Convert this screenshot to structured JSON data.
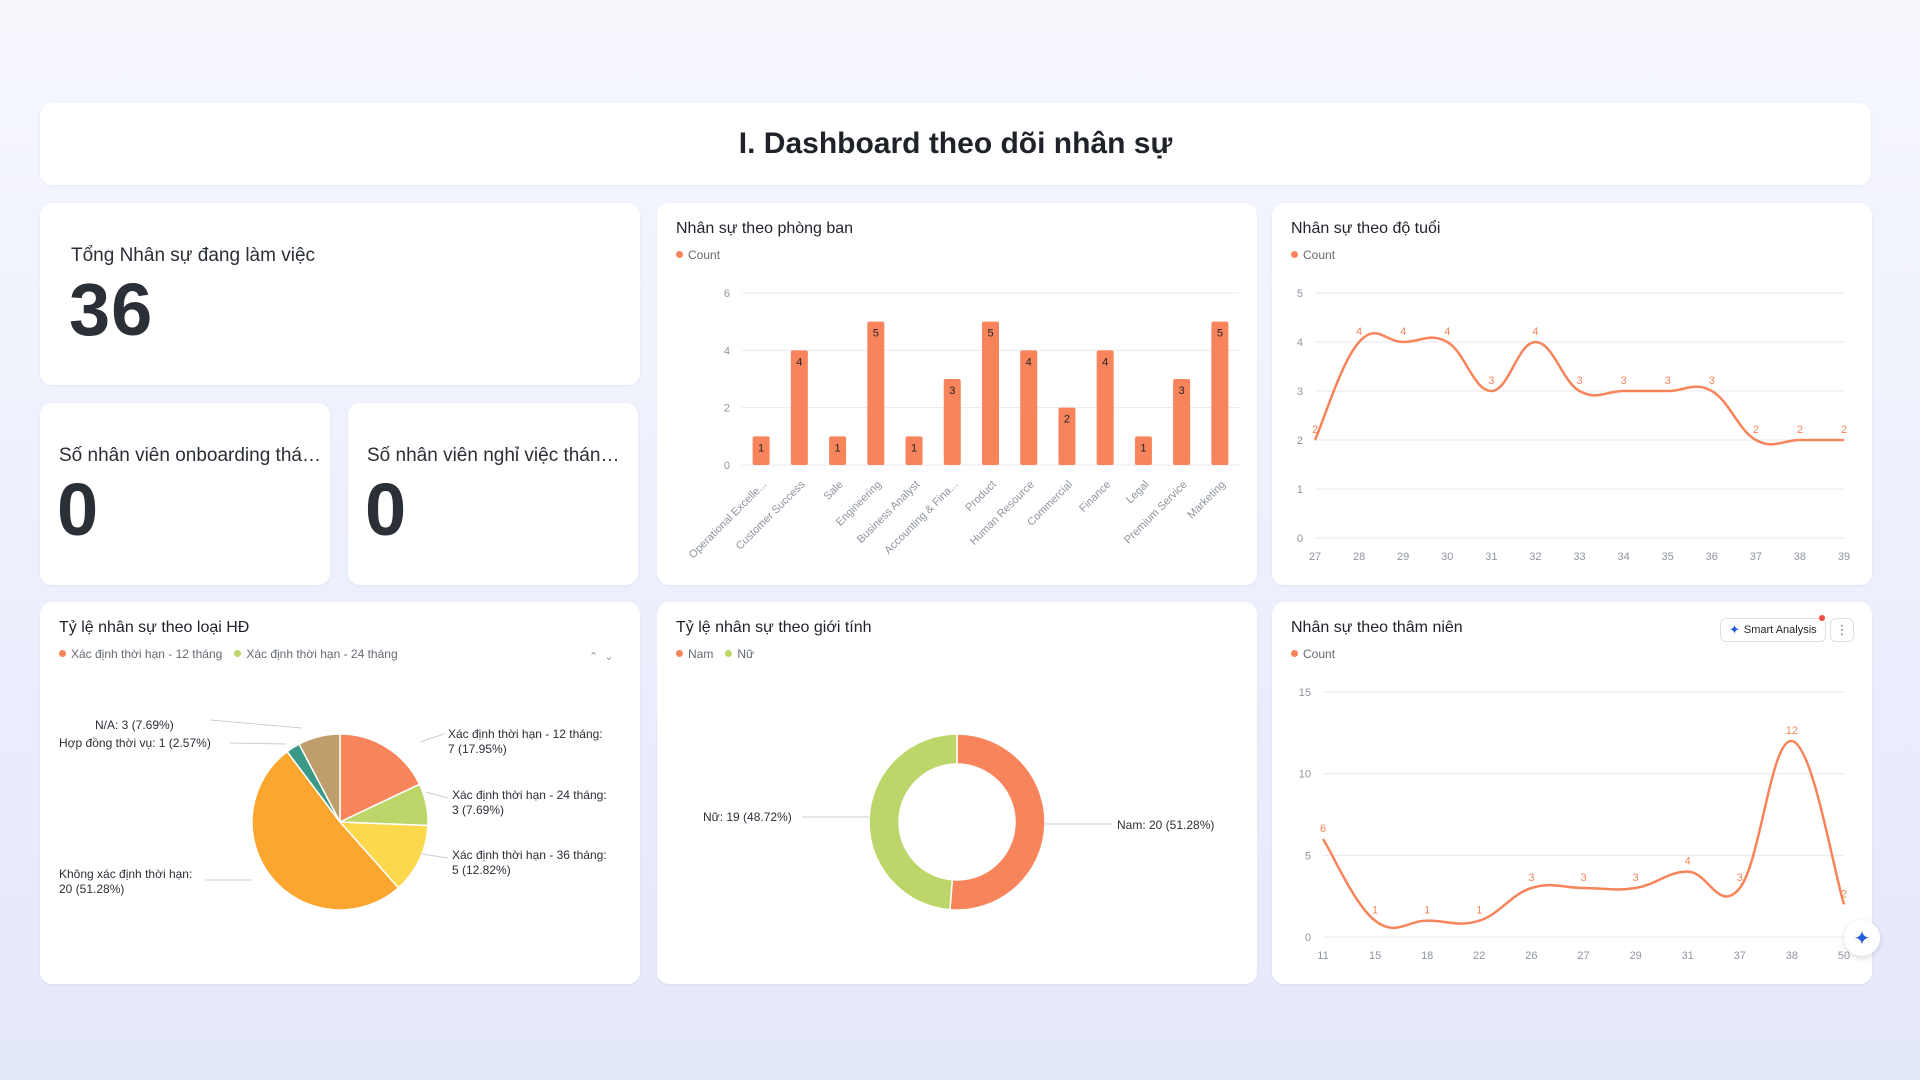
{
  "page_title": "I. Dashboard theo dõi nhân sự",
  "kpi_total": {
    "label": "Tổng Nhân sự đang làm việc",
    "value": "36"
  },
  "kpi_onboarding": {
    "label": "Số nhân viên onboarding thán...",
    "value": "0"
  },
  "kpi_resign": {
    "label": "Số nhân viên nghỉ việc tháng ...",
    "value": "0"
  },
  "colors": {
    "accent": "#f7845b",
    "green": "#bcd66a",
    "yellow": "#fcd84d",
    "orange": "#fba62f",
    "teal": "#3b9a87",
    "tan": "#bf9e6c",
    "ai_blue": "#245bdb"
  },
  "dept_chart": {
    "title": "Nhân sự theo phòng ban",
    "legend": "Count"
  },
  "age_chart": {
    "title": "Nhân sự theo độ tuổi",
    "legend": "Count"
  },
  "contract_chart": {
    "title": "Tỷ lệ nhân sự theo loại HĐ",
    "legend": [
      "Xác định thời hạn - 12 tháng",
      "Xác định thời hạn - 24 tháng"
    ],
    "labels": {
      "l12a": "Xác định thời hạn - 12 tháng:",
      "l12b": "7 (17.95%)",
      "l24a": "Xác định thời hạn - 24 tháng:",
      "l24b": "3 (7.69%)",
      "l36a": "Xác định thời hạn - 36 tháng:",
      "l36b": "5 (12.82%)",
      "lkxa": "Không xác định thời hạn:",
      "lkxb": "20 (51.28%)",
      "lna": "N/A: 3 (7.69%)",
      "lhd": "Hợp đồng thời vụ: 1 (2.57%)"
    }
  },
  "gender_chart": {
    "title": "Tỷ lệ nhân sự theo giới tính",
    "legend": [
      "Nam",
      "Nữ"
    ],
    "labels": {
      "nu": "Nữ: 19 (48.72%)",
      "nam": "Nam: 20 (51.28%)"
    }
  },
  "tenure_chart": {
    "title": "Nhân sự theo thâm niên",
    "legend": "Count",
    "smart_label": "Smart Analysis"
  },
  "chart_data": [
    {
      "type": "bar",
      "title": "Nhân sự theo phòng ban",
      "categories": [
        "Operational Excelle...",
        "Customer Success",
        "Sale",
        "Engineering",
        "Business Analyst",
        "Accounting & Fina...",
        "Product",
        "Human Resource",
        "Commercial",
        "Finance",
        "Legal",
        "Premium Service",
        "Marketing"
      ],
      "series": [
        {
          "name": "Count",
          "values": [
            1,
            4,
            1,
            5,
            1,
            3,
            5,
            4,
            2,
            4,
            1,
            3,
            5
          ]
        }
      ],
      "ylim": [
        0,
        6
      ],
      "yticks": [
        0,
        2,
        4,
        6
      ],
      "grid": true,
      "legend": "top-left"
    },
    {
      "type": "line",
      "title": "Nhân sự theo độ tuổi",
      "x": [
        "27",
        "28",
        "29",
        "30",
        "31",
        "32",
        "33",
        "34",
        "35",
        "36",
        "37",
        "38",
        "39"
      ],
      "series": [
        {
          "name": "Count",
          "values": [
            2,
            4,
            4,
            4,
            3,
            4,
            3,
            3,
            3,
            3,
            2,
            2,
            2
          ]
        }
      ],
      "ylim": [
        0,
        5
      ],
      "yticks": [
        0,
        1,
        2,
        3,
        4,
        5
      ],
      "grid": true,
      "legend": "top-left"
    },
    {
      "type": "pie",
      "title": "Tỷ lệ nhân sự theo loại HĐ",
      "slices": [
        {
          "name": "Xác định thời hạn - 12 tháng",
          "value": 7,
          "percent": 17.95,
          "color": "#f7845b"
        },
        {
          "name": "Xác định thời hạn - 24 tháng",
          "value": 3,
          "percent": 7.69,
          "color": "#bcd66a"
        },
        {
          "name": "Xác định thời hạn - 36 tháng",
          "value": 5,
          "percent": 12.82,
          "color": "#fcd84d"
        },
        {
          "name": "Không xác định thời hạn",
          "value": 20,
          "percent": 51.28,
          "color": "#fba62f"
        },
        {
          "name": "Hợp đồng thời vụ",
          "value": 1,
          "percent": 2.57,
          "color": "#3b9a87"
        },
        {
          "name": "N/A",
          "value": 3,
          "percent": 7.69,
          "color": "#bf9e6c"
        }
      ]
    },
    {
      "type": "pie",
      "title": "Tỷ lệ nhân sự theo giới tính",
      "donut": true,
      "slices": [
        {
          "name": "Nam",
          "value": 20,
          "percent": 51.28,
          "color": "#f7845b"
        },
        {
          "name": "Nữ",
          "value": 19,
          "percent": 48.72,
          "color": "#bcd66a"
        }
      ]
    },
    {
      "type": "line",
      "title": "Nhân sự theo thâm niên",
      "x": [
        "11",
        "15",
        "18",
        "22",
        "26",
        "27",
        "29",
        "31",
        "37",
        "38",
        "50"
      ],
      "series": [
        {
          "name": "Count",
          "values": [
            6,
            1,
            1,
            1,
            3,
            3,
            3,
            4,
            3,
            12,
            2
          ]
        }
      ],
      "ylim": [
        0,
        15
      ],
      "yticks": [
        0,
        5,
        10,
        15
      ],
      "grid": true,
      "legend": "top-left"
    }
  ]
}
